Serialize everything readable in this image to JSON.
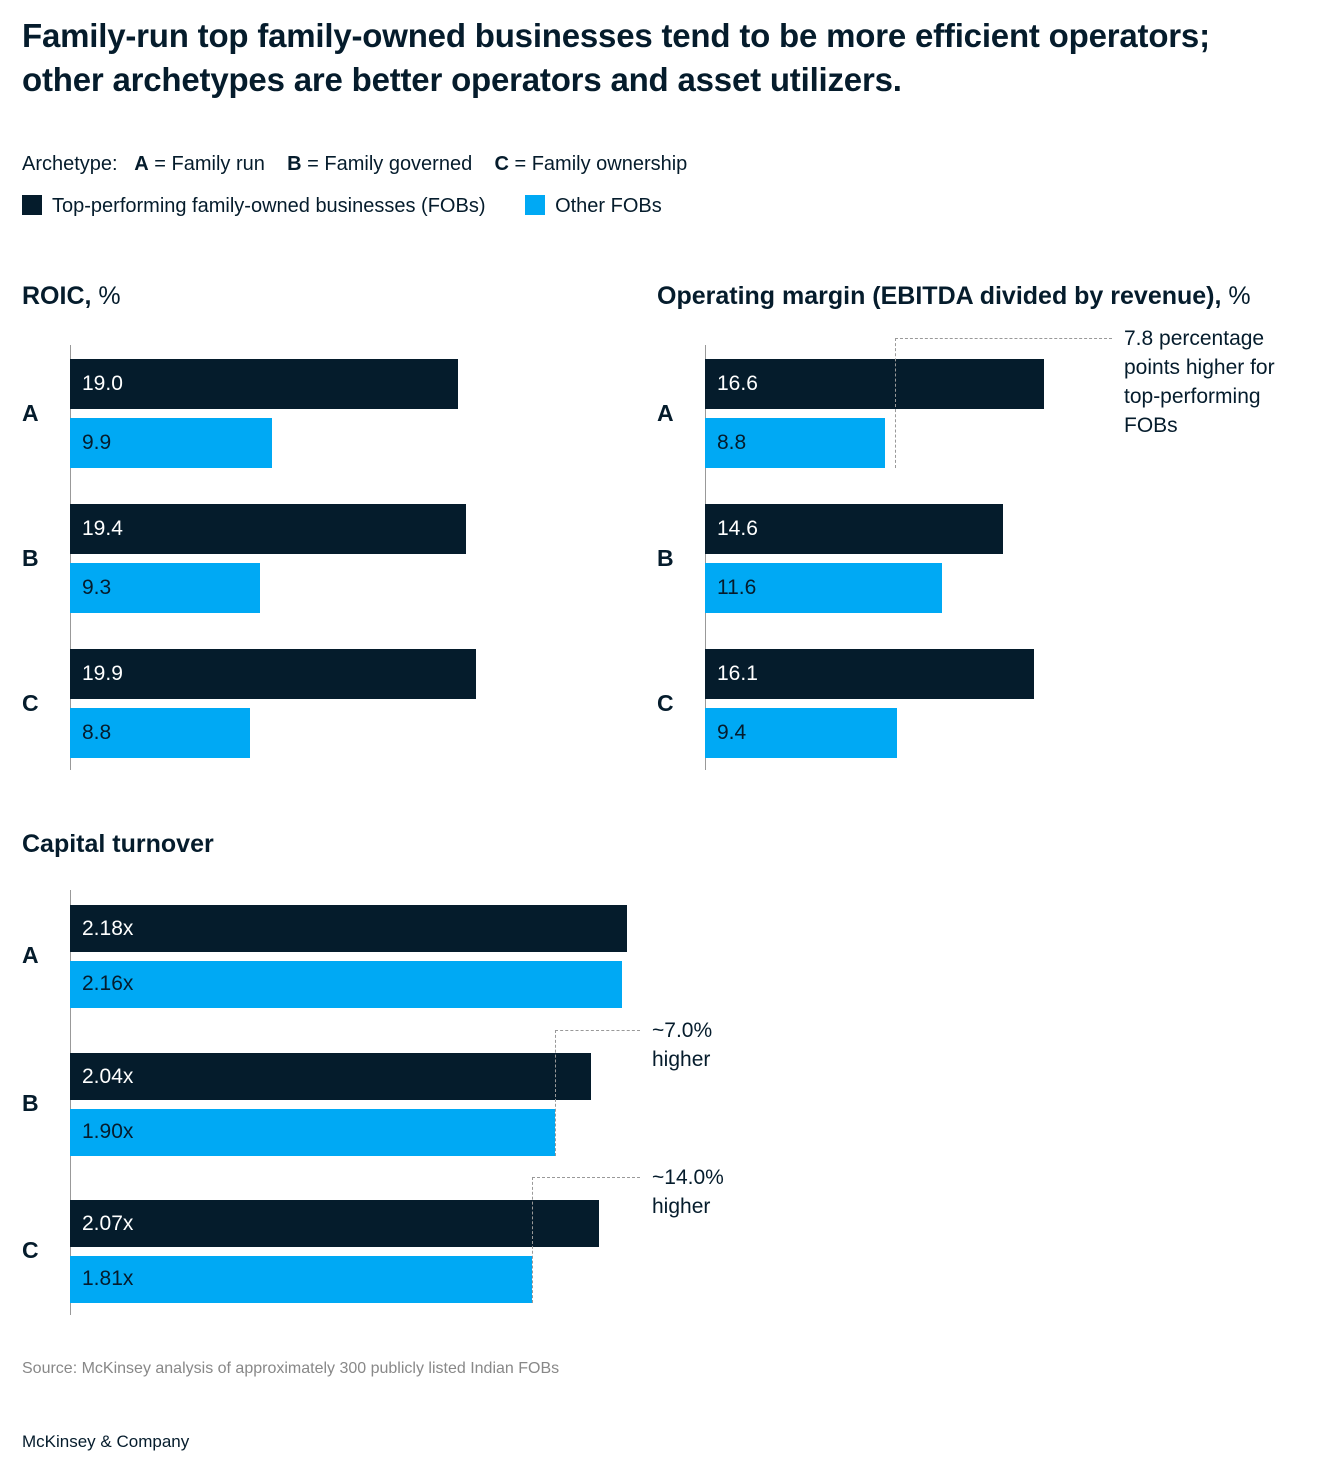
{
  "title": "Family-run top family-owned businesses tend to be more efficient operators; other archetypes are better operators and asset utilizers.",
  "legend": {
    "archetype_label": "Archetype:",
    "archetypes": [
      {
        "key": "A",
        "text": " = Family run"
      },
      {
        "key": "B",
        "text": " = Family governed"
      },
      {
        "key": "C",
        "text": " = Family ownership"
      }
    ],
    "series": [
      {
        "name": "Top-performing family-owned businesses (FOBs)",
        "color": "#051c2c"
      },
      {
        "name": "Other FOBs",
        "color": "#00a9f4"
      }
    ]
  },
  "chart_data": [
    {
      "type": "bar",
      "id": "roic",
      "title": "ROIC,",
      "unit": " %",
      "categories": [
        "A",
        "B",
        "C"
      ],
      "series": [
        {
          "name": "Top-performing FOBs",
          "values": [
            19.0,
            19.4,
            19.9
          ],
          "labels": [
            "19.0",
            "19.4",
            "19.9"
          ]
        },
        {
          "name": "Other FOBs",
          "values": [
            9.9,
            9.3,
            8.8
          ],
          "labels": [
            "9.9",
            "9.3",
            "8.8"
          ]
        }
      ],
      "xlim": [
        0,
        22
      ]
    },
    {
      "type": "bar",
      "id": "margin",
      "title": "Operating margin (EBITDA divided by revenue),",
      "unit": " %",
      "categories": [
        "A",
        "B",
        "C"
      ],
      "series": [
        {
          "name": "Top-performing FOBs",
          "values": [
            16.6,
            14.6,
            16.1
          ],
          "labels": [
            "16.6",
            "14.6",
            "16.1"
          ]
        },
        {
          "name": "Other FOBs",
          "values": [
            8.8,
            11.6,
            9.4
          ],
          "labels": [
            "8.8",
            "11.6",
            "9.4"
          ]
        }
      ],
      "xlim": [
        0,
        22
      ],
      "annotations": [
        {
          "category": "A",
          "lines": [
            "7.8 percentage",
            "points higher for",
            "top-performing",
            "FOBs"
          ]
        }
      ]
    },
    {
      "type": "bar",
      "id": "turnover",
      "title": "Capital turnover",
      "unit": "",
      "categories": [
        "A",
        "B",
        "C"
      ],
      "series": [
        {
          "name": "Top-performing FOBs",
          "values": [
            2.18,
            2.04,
            2.07
          ],
          "labels": [
            "2.18x",
            "2.04x",
            "2.07x"
          ]
        },
        {
          "name": "Other FOBs",
          "values": [
            2.16,
            1.9,
            1.81
          ],
          "labels": [
            "2.16x",
            "1.90x",
            "1.81x"
          ]
        }
      ],
      "xlim": [
        0,
        2.4
      ],
      "annotations": [
        {
          "category": "B",
          "lines": [
            "~7.0%",
            "higher"
          ]
        },
        {
          "category": "C",
          "lines": [
            "~14.0%",
            "higher"
          ]
        }
      ]
    }
  ],
  "source": "Source: McKinsey analysis of approximately 300 publicly listed Indian FOBs",
  "logo": "McKinsey & Company"
}
